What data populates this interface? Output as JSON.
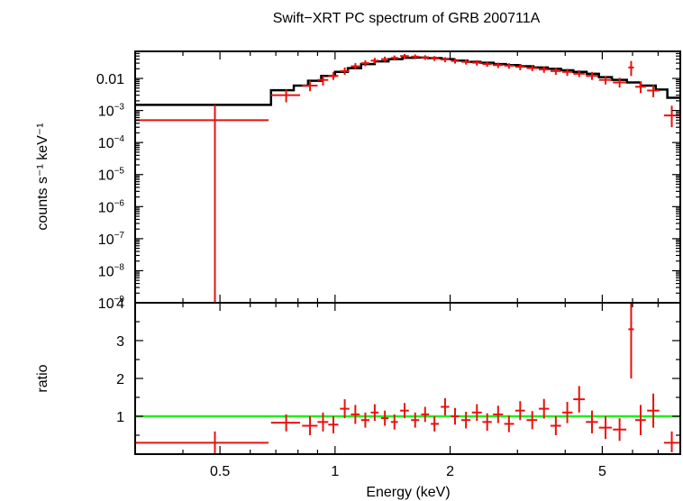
{
  "chart_data": [
    {
      "type": "scatter",
      "title": "Swift−XRT PC spectrum of GRB 200711A",
      "ylabel": "counts s⁻¹ keV⁻¹",
      "xscale": "log",
      "yscale": "log",
      "xlim": [
        0.3,
        8.0
      ],
      "ylim": [
        1e-09,
        0.07
      ],
      "yticks": [
        {
          "value": 0.01,
          "base": "0.01",
          "exp": ""
        },
        {
          "value": 0.001,
          "base": "10",
          "exp": "−3"
        },
        {
          "value": 0.0001,
          "base": "10",
          "exp": "−4"
        },
        {
          "value": 1e-05,
          "base": "10",
          "exp": "−5"
        },
        {
          "value": 1e-06,
          "base": "10",
          "exp": "−6"
        },
        {
          "value": 1e-07,
          "base": "10",
          "exp": "−7"
        },
        {
          "value": 1e-08,
          "base": "10",
          "exp": "−8"
        },
        {
          "value": 1e-09,
          "base": "10",
          "exp": "−9"
        }
      ],
      "series": [
        {
          "color": "#e8120c",
          "points": [
            {
              "x": 0.485,
              "xlo": 0.3,
              "xhi": 0.67,
              "y": 0.0005,
              "ylo": 1e-09,
              "yhi": 0.0015
            },
            {
              "x": 0.745,
              "xlo": 0.68,
              "xhi": 0.81,
              "y": 0.003,
              "ylo": 0.0018,
              "yhi": 0.0045
            },
            {
              "x": 0.86,
              "xlo": 0.82,
              "xhi": 0.9,
              "y": 0.006,
              "ylo": 0.004,
              "yhi": 0.0085
            },
            {
              "x": 0.93,
              "xlo": 0.9,
              "xhi": 0.96,
              "y": 0.009,
              "ylo": 0.006,
              "yhi": 0.012
            },
            {
              "x": 0.99,
              "xlo": 0.96,
              "xhi": 1.02,
              "y": 0.012,
              "ylo": 0.009,
              "yhi": 0.016
            },
            {
              "x": 1.06,
              "xlo": 1.03,
              "xhi": 1.09,
              "y": 0.017,
              "ylo": 0.013,
              "yhi": 0.022
            },
            {
              "x": 1.13,
              "xlo": 1.1,
              "xhi": 1.16,
              "y": 0.024,
              "ylo": 0.019,
              "yhi": 0.03
            },
            {
              "x": 1.2,
              "xlo": 1.17,
              "xhi": 1.23,
              "y": 0.03,
              "ylo": 0.024,
              "yhi": 0.037
            },
            {
              "x": 1.27,
              "xlo": 1.24,
              "xhi": 1.3,
              "y": 0.036,
              "ylo": 0.029,
              "yhi": 0.044
            },
            {
              "x": 1.35,
              "xlo": 1.32,
              "xhi": 1.38,
              "y": 0.04,
              "ylo": 0.033,
              "yhi": 0.048
            },
            {
              "x": 1.43,
              "xlo": 1.4,
              "xhi": 1.46,
              "y": 0.044,
              "ylo": 0.037,
              "yhi": 0.052
            },
            {
              "x": 1.52,
              "xlo": 1.48,
              "xhi": 1.56,
              "y": 0.05,
              "ylo": 0.042,
              "yhi": 0.058
            },
            {
              "x": 1.62,
              "xlo": 1.58,
              "xhi": 1.66,
              "y": 0.048,
              "ylo": 0.04,
              "yhi": 0.056
            },
            {
              "x": 1.72,
              "xlo": 1.68,
              "xhi": 1.76,
              "y": 0.045,
              "ylo": 0.038,
              "yhi": 0.053
            },
            {
              "x": 1.82,
              "xlo": 1.78,
              "xhi": 1.87,
              "y": 0.042,
              "ylo": 0.035,
              "yhi": 0.05
            },
            {
              "x": 1.94,
              "xlo": 1.89,
              "xhi": 1.99,
              "y": 0.039,
              "ylo": 0.032,
              "yhi": 0.046
            },
            {
              "x": 2.06,
              "xlo": 2.01,
              "xhi": 2.11,
              "y": 0.035,
              "ylo": 0.029,
              "yhi": 0.042
            },
            {
              "x": 2.2,
              "xlo": 2.14,
              "xhi": 2.26,
              "y": 0.033,
              "ylo": 0.027,
              "yhi": 0.039
            },
            {
              "x": 2.35,
              "xlo": 2.28,
              "xhi": 2.42,
              "y": 0.031,
              "ylo": 0.025,
              "yhi": 0.037
            },
            {
              "x": 2.5,
              "xlo": 2.43,
              "xhi": 2.57,
              "y": 0.028,
              "ylo": 0.023,
              "yhi": 0.034
            },
            {
              "x": 2.67,
              "xlo": 2.59,
              "xhi": 2.75,
              "y": 0.026,
              "ylo": 0.021,
              "yhi": 0.031
            },
            {
              "x": 2.85,
              "xlo": 2.77,
              "xhi": 2.94,
              "y": 0.025,
              "ylo": 0.02,
              "yhi": 0.03
            },
            {
              "x": 3.05,
              "xlo": 2.96,
              "xhi": 3.14,
              "y": 0.023,
              "ylo": 0.018,
              "yhi": 0.028
            },
            {
              "x": 3.28,
              "xlo": 3.17,
              "xhi": 3.38,
              "y": 0.021,
              "ylo": 0.017,
              "yhi": 0.026
            },
            {
              "x": 3.52,
              "xlo": 3.41,
              "xhi": 3.63,
              "y": 0.019,
              "ylo": 0.015,
              "yhi": 0.024
            },
            {
              "x": 3.78,
              "xlo": 3.66,
              "xhi": 3.9,
              "y": 0.017,
              "ylo": 0.013,
              "yhi": 0.021
            },
            {
              "x": 4.05,
              "xlo": 3.93,
              "xhi": 4.18,
              "y": 0.016,
              "ylo": 0.012,
              "yhi": 0.02
            },
            {
              "x": 4.35,
              "xlo": 4.2,
              "xhi": 4.5,
              "y": 0.014,
              "ylo": 0.011,
              "yhi": 0.018
            },
            {
              "x": 4.7,
              "xlo": 4.53,
              "xhi": 4.87,
              "y": 0.012,
              "ylo": 0.009,
              "yhi": 0.016
            },
            {
              "x": 5.1,
              "xlo": 4.9,
              "xhi": 5.3,
              "y": 0.009,
              "ylo": 0.0065,
              "yhi": 0.012
            },
            {
              "x": 5.55,
              "xlo": 5.33,
              "xhi": 5.78,
              "y": 0.0075,
              "ylo": 0.0052,
              "yhi": 0.0105
            },
            {
              "x": 5.95,
              "xlo": 5.85,
              "xhi": 6.05,
              "y": 0.022,
              "ylo": 0.012,
              "yhi": 0.035
            },
            {
              "x": 6.3,
              "xlo": 6.1,
              "xhi": 6.5,
              "y": 0.0055,
              "ylo": 0.0035,
              "yhi": 0.008
            },
            {
              "x": 6.8,
              "xlo": 6.55,
              "xhi": 7.05,
              "y": 0.0042,
              "ylo": 0.0026,
              "yhi": 0.0062
            },
            {
              "x": 7.6,
              "xlo": 7.25,
              "xhi": 7.95,
              "y": 0.0007,
              "ylo": 0.0003,
              "yhi": 0.0014
            }
          ]
        },
        {
          "color": "#000000",
          "line": "step",
          "points": [
            {
              "x": 0.3,
              "y": 0.0015
            },
            {
              "x": 0.68,
              "y": 0.0043
            },
            {
              "x": 0.78,
              "y": 0.006
            },
            {
              "x": 0.85,
              "y": 0.0085
            },
            {
              "x": 0.92,
              "y": 0.012
            },
            {
              "x": 1.0,
              "y": 0.016
            },
            {
              "x": 1.08,
              "y": 0.021
            },
            {
              "x": 1.17,
              "y": 0.028
            },
            {
              "x": 1.27,
              "y": 0.034
            },
            {
              "x": 1.38,
              "y": 0.04
            },
            {
              "x": 1.5,
              "y": 0.044
            },
            {
              "x": 1.62,
              "y": 0.045
            },
            {
              "x": 1.75,
              "y": 0.043
            },
            {
              "x": 1.9,
              "y": 0.04
            },
            {
              "x": 2.05,
              "y": 0.036
            },
            {
              "x": 2.22,
              "y": 0.033
            },
            {
              "x": 2.4,
              "y": 0.031
            },
            {
              "x": 2.6,
              "y": 0.028
            },
            {
              "x": 2.8,
              "y": 0.026
            },
            {
              "x": 3.05,
              "y": 0.024
            },
            {
              "x": 3.3,
              "y": 0.022
            },
            {
              "x": 3.6,
              "y": 0.02
            },
            {
              "x": 3.9,
              "y": 0.018
            },
            {
              "x": 4.2,
              "y": 0.016
            },
            {
              "x": 4.55,
              "y": 0.014
            },
            {
              "x": 4.9,
              "y": 0.011
            },
            {
              "x": 5.3,
              "y": 0.009
            },
            {
              "x": 5.8,
              "y": 0.0075
            },
            {
              "x": 6.3,
              "y": 0.006
            },
            {
              "x": 6.9,
              "y": 0.0045
            },
            {
              "x": 7.4,
              "y": 0.0025
            },
            {
              "x": 8.0,
              "y": 0.0025
            }
          ]
        }
      ]
    },
    {
      "type": "scatter",
      "xlabel": "Energy (keV)",
      "ylabel": "ratio",
      "xscale": "log",
      "xlim": [
        0.3,
        8.0
      ],
      "ylim": [
        0.0,
        4.0
      ],
      "xticks": [
        {
          "value": 0.5,
          "label": "0.5"
        },
        {
          "value": 1,
          "label": "1"
        },
        {
          "value": 2,
          "label": "2"
        },
        {
          "value": 5,
          "label": "5"
        }
      ],
      "yticks": [
        {
          "value": 1,
          "label": "1"
        },
        {
          "value": 2,
          "label": "2"
        },
        {
          "value": 3,
          "label": "3"
        },
        {
          "value": 4,
          "label": "4"
        }
      ],
      "reference_line": {
        "y": 1.0,
        "color": "#22ee1a"
      },
      "series": [
        {
          "color": "#e8120c",
          "points": [
            {
              "x": 0.485,
              "xlo": 0.3,
              "xhi": 0.67,
              "y": 0.3,
              "ylo": 0.0,
              "yhi": 0.6
            },
            {
              "x": 0.745,
              "xlo": 0.68,
              "xhi": 0.81,
              "y": 0.83,
              "ylo": 0.6,
              "yhi": 1.05
            },
            {
              "x": 0.86,
              "xlo": 0.82,
              "xhi": 0.9,
              "y": 0.75,
              "ylo": 0.5,
              "yhi": 1.0
            },
            {
              "x": 0.93,
              "xlo": 0.9,
              "xhi": 0.96,
              "y": 0.85,
              "ylo": 0.6,
              "yhi": 1.1
            },
            {
              "x": 0.99,
              "xlo": 0.96,
              "xhi": 1.02,
              "y": 0.78,
              "ylo": 0.55,
              "yhi": 1.0
            },
            {
              "x": 1.06,
              "xlo": 1.03,
              "xhi": 1.09,
              "y": 1.2,
              "ylo": 0.95,
              "yhi": 1.45
            },
            {
              "x": 1.13,
              "xlo": 1.1,
              "xhi": 1.16,
              "y": 1.05,
              "ylo": 0.8,
              "yhi": 1.3
            },
            {
              "x": 1.2,
              "xlo": 1.17,
              "xhi": 1.23,
              "y": 0.9,
              "ylo": 0.7,
              "yhi": 1.1
            },
            {
              "x": 1.27,
              "xlo": 1.24,
              "xhi": 1.3,
              "y": 1.1,
              "ylo": 0.88,
              "yhi": 1.32
            },
            {
              "x": 1.35,
              "xlo": 1.32,
              "xhi": 1.38,
              "y": 0.95,
              "ylo": 0.75,
              "yhi": 1.15
            },
            {
              "x": 1.43,
              "xlo": 1.4,
              "xhi": 1.46,
              "y": 0.85,
              "ylo": 0.65,
              "yhi": 1.05
            },
            {
              "x": 1.52,
              "xlo": 1.48,
              "xhi": 1.56,
              "y": 1.15,
              "ylo": 0.95,
              "yhi": 1.35
            },
            {
              "x": 1.62,
              "xlo": 1.58,
              "xhi": 1.66,
              "y": 0.9,
              "ylo": 0.7,
              "yhi": 1.1
            },
            {
              "x": 1.72,
              "xlo": 1.68,
              "xhi": 1.76,
              "y": 1.05,
              "ylo": 0.85,
              "yhi": 1.25
            },
            {
              "x": 1.82,
              "xlo": 1.78,
              "xhi": 1.87,
              "y": 0.8,
              "ylo": 0.6,
              "yhi": 1.0
            },
            {
              "x": 1.94,
              "xlo": 1.89,
              "xhi": 1.99,
              "y": 1.25,
              "ylo": 1.02,
              "yhi": 1.48
            },
            {
              "x": 2.06,
              "xlo": 2.01,
              "xhi": 2.11,
              "y": 1.0,
              "ylo": 0.78,
              "yhi": 1.22
            },
            {
              "x": 2.2,
              "xlo": 2.14,
              "xhi": 2.26,
              "y": 0.9,
              "ylo": 0.68,
              "yhi": 1.12
            },
            {
              "x": 2.35,
              "xlo": 2.28,
              "xhi": 2.42,
              "y": 1.1,
              "ylo": 0.88,
              "yhi": 1.32
            },
            {
              "x": 2.5,
              "xlo": 2.43,
              "xhi": 2.57,
              "y": 0.85,
              "ylo": 0.62,
              "yhi": 1.08
            },
            {
              "x": 2.67,
              "xlo": 2.59,
              "xhi": 2.75,
              "y": 1.05,
              "ylo": 0.82,
              "yhi": 1.28
            },
            {
              "x": 2.85,
              "xlo": 2.77,
              "xhi": 2.94,
              "y": 0.8,
              "ylo": 0.58,
              "yhi": 1.02
            },
            {
              "x": 3.05,
              "xlo": 2.96,
              "xhi": 3.14,
              "y": 1.15,
              "ylo": 0.9,
              "yhi": 1.4
            },
            {
              "x": 3.28,
              "xlo": 3.17,
              "xhi": 3.38,
              "y": 0.9,
              "ylo": 0.66,
              "yhi": 1.14
            },
            {
              "x": 3.52,
              "xlo": 3.41,
              "xhi": 3.63,
              "y": 1.2,
              "ylo": 0.94,
              "yhi": 1.46
            },
            {
              "x": 3.78,
              "xlo": 3.66,
              "xhi": 3.9,
              "y": 0.75,
              "ylo": 0.5,
              "yhi": 1.0
            },
            {
              "x": 4.05,
              "xlo": 3.93,
              "xhi": 4.18,
              "y": 1.1,
              "ylo": 0.82,
              "yhi": 1.38
            },
            {
              "x": 4.35,
              "xlo": 4.2,
              "xhi": 4.5,
              "y": 1.45,
              "ylo": 1.1,
              "yhi": 1.8
            },
            {
              "x": 4.7,
              "xlo": 4.53,
              "xhi": 4.87,
              "y": 0.85,
              "ylo": 0.55,
              "yhi": 1.15
            },
            {
              "x": 5.1,
              "xlo": 4.9,
              "xhi": 5.3,
              "y": 0.7,
              "ylo": 0.4,
              "yhi": 1.0
            },
            {
              "x": 5.55,
              "xlo": 5.33,
              "xhi": 5.78,
              "y": 0.65,
              "ylo": 0.35,
              "yhi": 0.95
            },
            {
              "x": 5.95,
              "xlo": 5.85,
              "xhi": 6.05,
              "y": 3.3,
              "ylo": 2.0,
              "yhi": 4.0
            },
            {
              "x": 6.3,
              "xlo": 6.1,
              "xhi": 6.5,
              "y": 0.9,
              "ylo": 0.5,
              "yhi": 1.3
            },
            {
              "x": 6.8,
              "xlo": 6.55,
              "xhi": 7.05,
              "y": 1.15,
              "ylo": 0.7,
              "yhi": 1.6
            },
            {
              "x": 7.6,
              "xlo": 7.25,
              "xhi": 7.95,
              "y": 0.3,
              "ylo": 0.05,
              "yhi": 0.6
            }
          ]
        }
      ]
    }
  ]
}
